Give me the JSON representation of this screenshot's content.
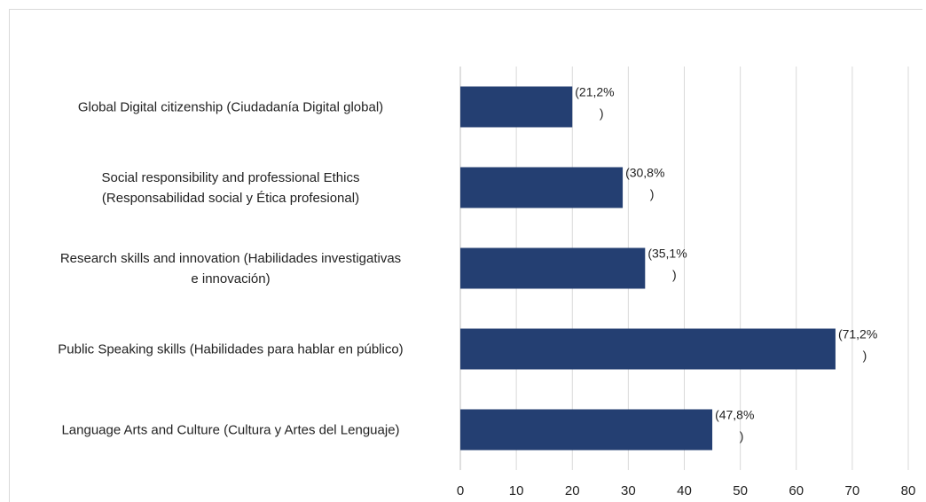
{
  "chart_data": {
    "type": "bar",
    "orientation": "horizontal",
    "title": "",
    "xlabel": "",
    "ylabel": "",
    "xlim": [
      0,
      80
    ],
    "x_ticks": [
      "0",
      "10",
      "20",
      "30",
      "40",
      "50",
      "60",
      "70",
      "80"
    ],
    "grid": "vertical",
    "bar_color": "#243f72",
    "categories": [
      [
        "Global Digital citizenship (Ciudadanía Digital global)"
      ],
      [
        "Social responsibility and professional Ethics",
        "(Responsabilidad social y Ética profesional)"
      ],
      [
        "Research skills and innovation (Habilidades investigativas",
        "e innovación)"
      ],
      [
        "Public Speaking skills (Habilidades para hablar en público)"
      ],
      [
        "Language Arts and Culture (Cultura y Artes del Lenguaje)"
      ]
    ],
    "values": [
      20,
      29,
      33,
      67,
      45
    ],
    "data_labels": [
      [
        "(21,2%",
        ")"
      ],
      [
        "(30,8%",
        ")"
      ],
      [
        "(35,1%",
        ")"
      ],
      [
        "(71,2%",
        ")"
      ],
      [
        "(47,8%",
        ")"
      ]
    ]
  }
}
